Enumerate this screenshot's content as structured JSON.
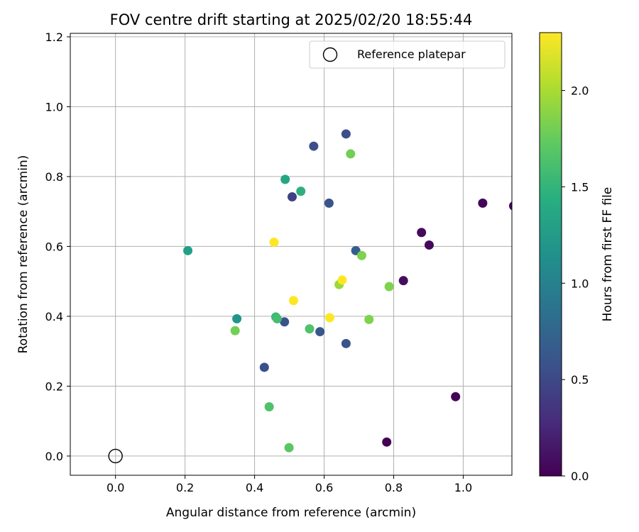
{
  "chart_data": {
    "type": "scatter",
    "title": "FOV centre drift starting at 2025/02/20 18:55:44",
    "xlabel": "Angular distance from reference (arcmin)",
    "ylabel": "Rotation from reference (arcmin)",
    "xlim": [
      -0.13,
      1.14
    ],
    "ylim": [
      -0.055,
      1.21
    ],
    "xticks": [
      0.0,
      0.2,
      0.4,
      0.6,
      0.8,
      1.0
    ],
    "yticks": [
      0.0,
      0.2,
      0.4,
      0.6,
      0.8,
      1.0,
      1.2
    ],
    "xtick_labels": [
      "0.0",
      "0.2",
      "0.4",
      "0.6",
      "0.8",
      "1.0"
    ],
    "ytick_labels": [
      "0.0",
      "0.2",
      "0.4",
      "0.6",
      "0.8",
      "1.0",
      "1.2"
    ],
    "grid": true,
    "legend": {
      "position": "top-right",
      "label": "Reference platepar"
    },
    "reference_point": {
      "x": 0.0,
      "y": 0.0
    },
    "colorbar": {
      "label": "Hours from first FF file",
      "range": [
        0.0,
        2.3
      ],
      "ticks": [
        0.0,
        0.5,
        1.0,
        1.5,
        2.0
      ],
      "tick_labels": [
        "0.0",
        "0.5",
        "1.0",
        "1.5",
        "2.0"
      ],
      "colormap": "viridis"
    },
    "points": [
      {
        "x": 0.78,
        "y": 0.04,
        "hours": 0.0
      },
      {
        "x": 0.978,
        "y": 0.17,
        "hours": 0.02
      },
      {
        "x": 0.902,
        "y": 0.604,
        "hours": 0.05
      },
      {
        "x": 0.88,
        "y": 0.64,
        "hours": 0.06
      },
      {
        "x": 0.828,
        "y": 0.502,
        "hours": 0.08
      },
      {
        "x": 1.056,
        "y": 0.724,
        "hours": 0.03
      },
      {
        "x": 1.145,
        "y": 0.716,
        "hours": 0.02
      },
      {
        "x": 0.508,
        "y": 0.742,
        "hours": 0.45
      },
      {
        "x": 0.428,
        "y": 0.254,
        "hours": 0.55
      },
      {
        "x": 0.57,
        "y": 0.887,
        "hours": 0.55
      },
      {
        "x": 0.663,
        "y": 0.922,
        "hours": 0.55
      },
      {
        "x": 0.614,
        "y": 0.724,
        "hours": 0.6
      },
      {
        "x": 0.663,
        "y": 0.322,
        "hours": 0.6
      },
      {
        "x": 0.486,
        "y": 0.384,
        "hours": 0.6
      },
      {
        "x": 0.588,
        "y": 0.356,
        "hours": 0.62
      },
      {
        "x": 0.691,
        "y": 0.588,
        "hours": 0.68
      },
      {
        "x": 0.349,
        "y": 0.393,
        "hours": 1.2
      },
      {
        "x": 0.208,
        "y": 0.588,
        "hours": 1.3
      },
      {
        "x": 0.488,
        "y": 0.792,
        "hours": 1.35
      },
      {
        "x": 0.533,
        "y": 0.758,
        "hours": 1.45
      },
      {
        "x": 0.461,
        "y": 0.398,
        "hours": 1.55
      },
      {
        "x": 0.465,
        "y": 0.393,
        "hours": 1.6
      },
      {
        "x": 0.558,
        "y": 0.364,
        "hours": 1.65
      },
      {
        "x": 0.442,
        "y": 0.141,
        "hours": 1.65
      },
      {
        "x": 0.499,
        "y": 0.024,
        "hours": 1.7
      },
      {
        "x": 0.344,
        "y": 0.359,
        "hours": 1.8
      },
      {
        "x": 0.676,
        "y": 0.865,
        "hours": 1.8
      },
      {
        "x": 0.729,
        "y": 0.391,
        "hours": 1.85
      },
      {
        "x": 0.708,
        "y": 0.574,
        "hours": 1.85
      },
      {
        "x": 0.787,
        "y": 0.485,
        "hours": 1.85
      },
      {
        "x": 0.643,
        "y": 0.491,
        "hours": 1.95
      },
      {
        "x": 0.456,
        "y": 0.612,
        "hours": 2.3
      },
      {
        "x": 0.512,
        "y": 0.445,
        "hours": 2.3
      },
      {
        "x": 0.616,
        "y": 0.396,
        "hours": 2.3
      },
      {
        "x": 0.652,
        "y": 0.504,
        "hours": 2.3
      }
    ]
  }
}
